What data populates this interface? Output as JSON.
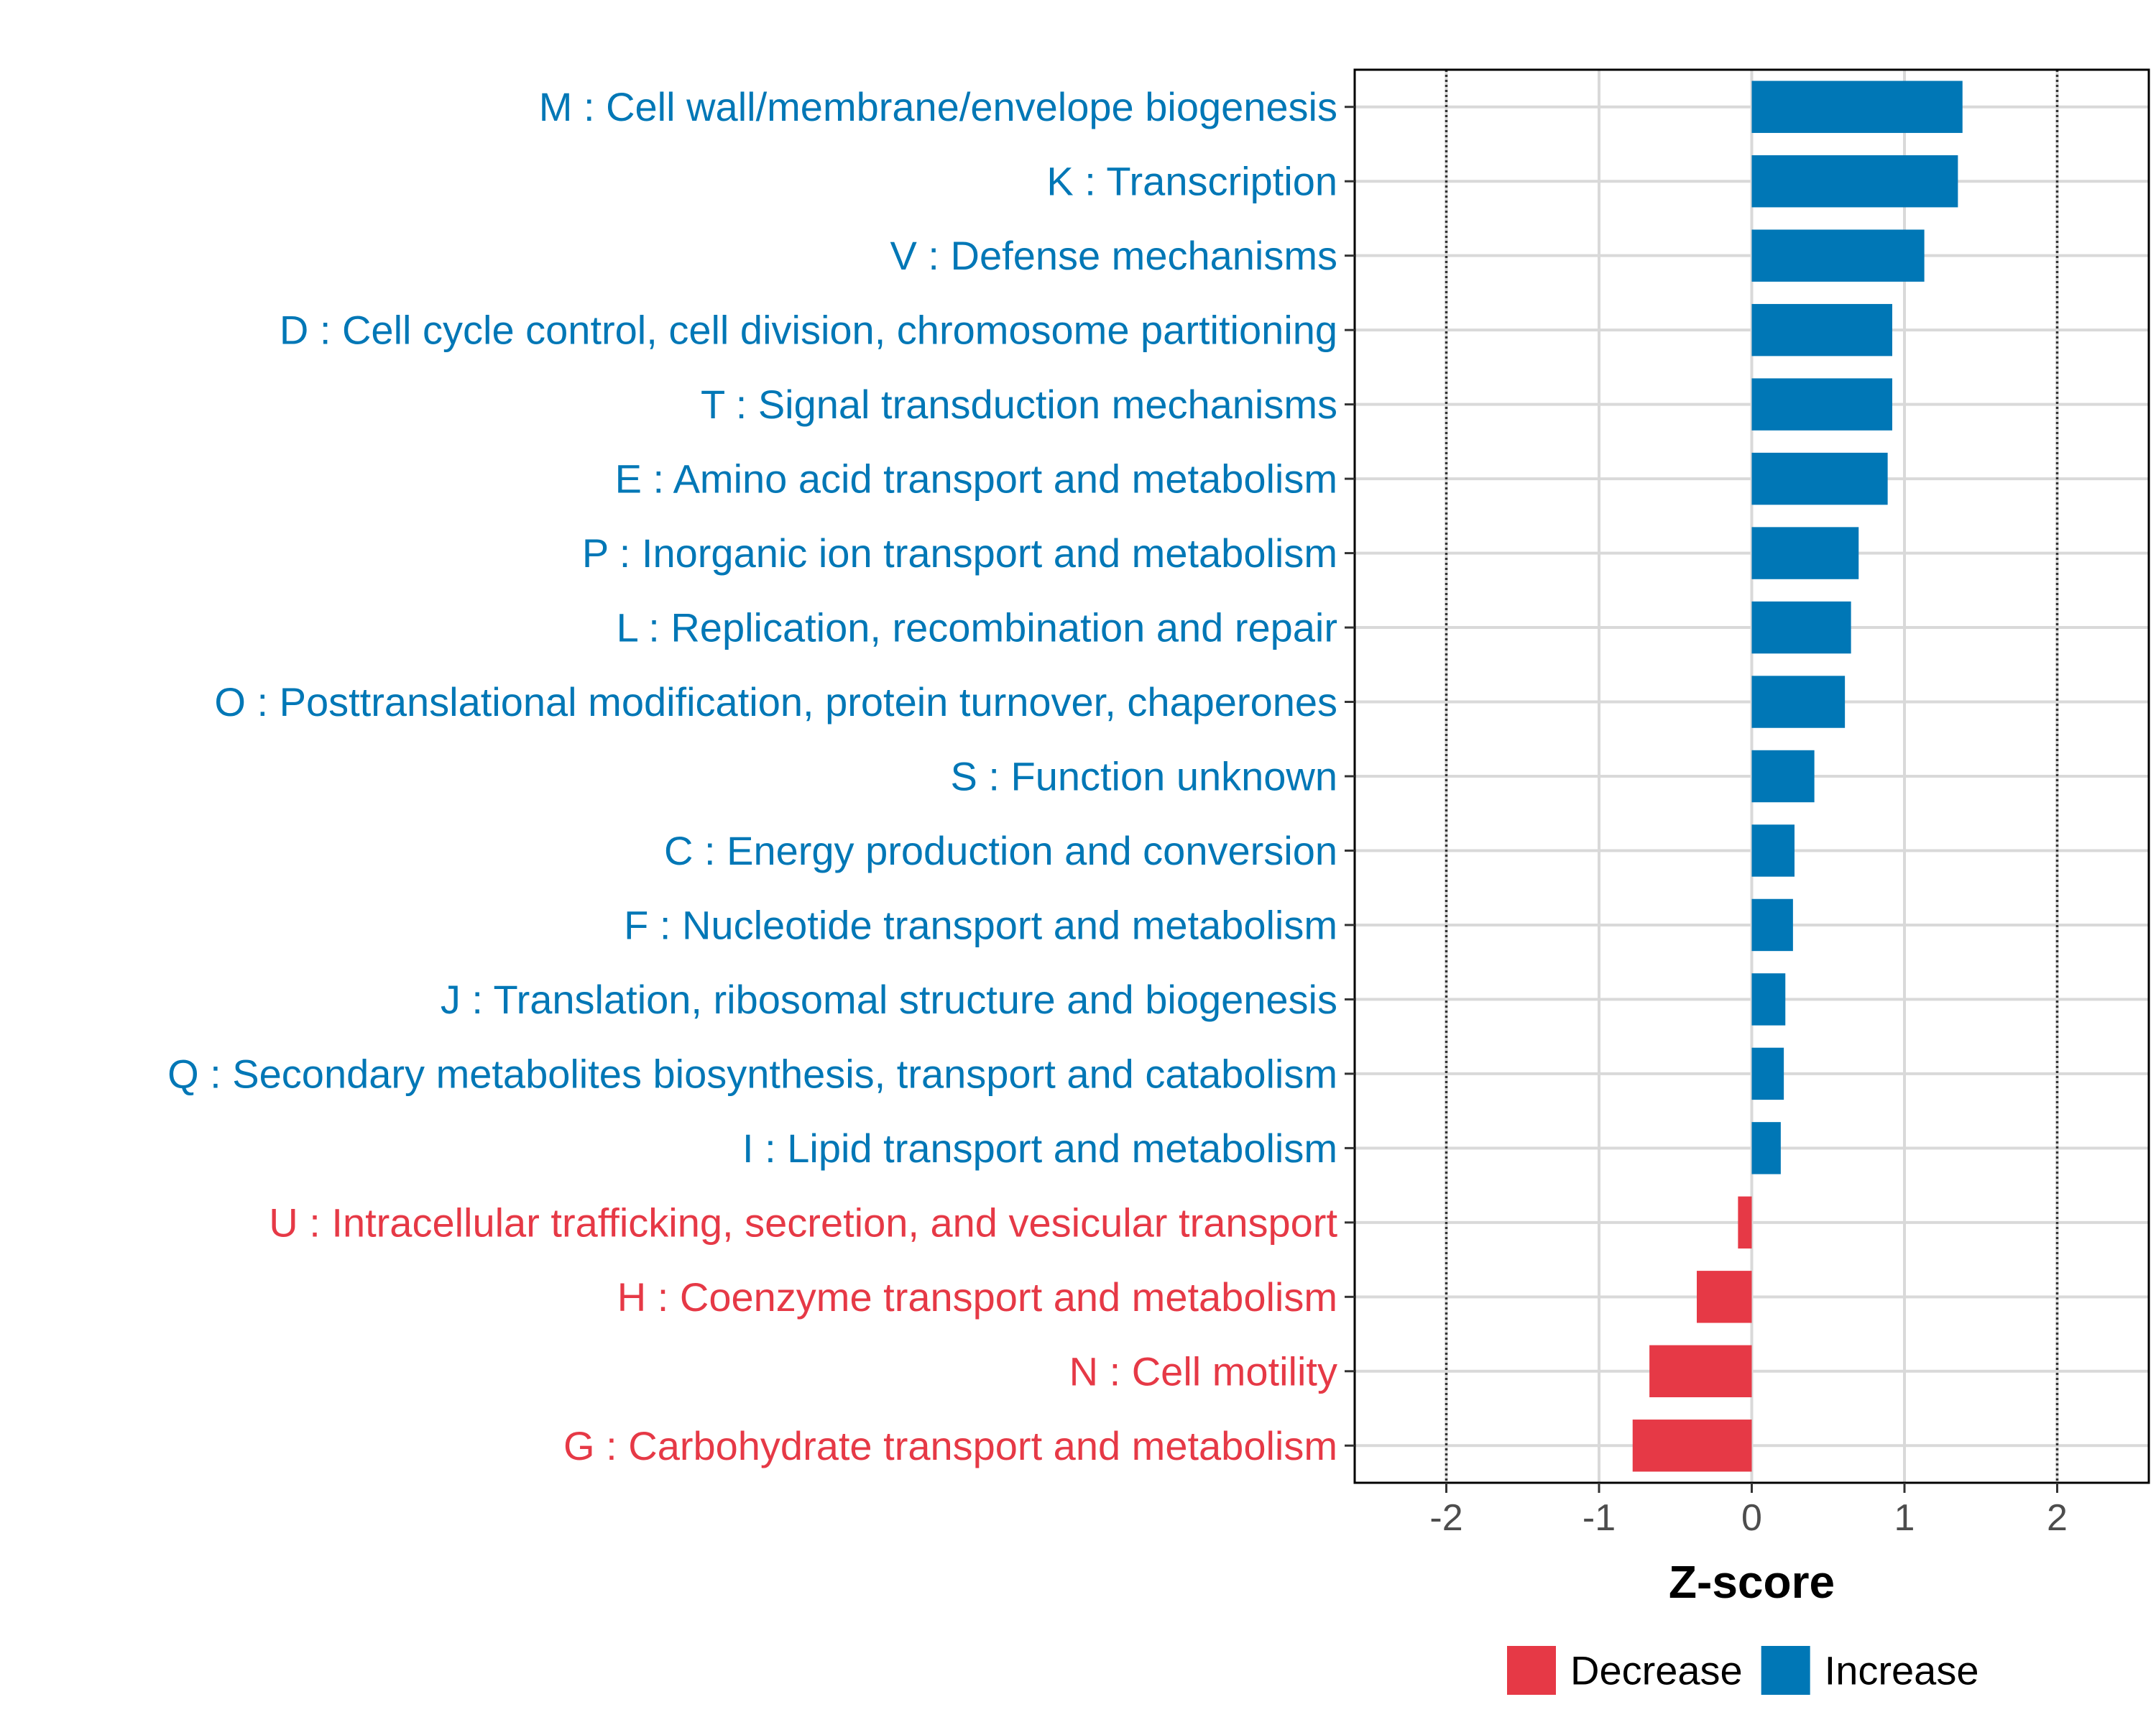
{
  "chart_data": {
    "type": "bar",
    "orientation": "horizontal",
    "title": "",
    "xlabel": "Z-score",
    "ylabel": "",
    "xlim": [
      -2.6,
      2.6
    ],
    "xticks": [
      -2,
      -1,
      0,
      1,
      2
    ],
    "xtick_labels": [
      "-2",
      "-1",
      "0",
      "1",
      "2"
    ],
    "reference_lines": [
      -2,
      2
    ],
    "grid": true,
    "categories": [
      "M : Cell wall/membrane/envelope biogenesis",
      "K : Transcription",
      "V : Defense mechanisms",
      "D : Cell cycle control, cell division, chromosome partitioning",
      "T : Signal transduction mechanisms",
      "E : Amino acid transport and metabolism",
      "P : Inorganic ion transport and metabolism",
      "L : Replication, recombination and repair",
      "O : Posttranslational modification, protein turnover, chaperones",
      "S : Function unknown",
      "C : Energy production and conversion",
      "F : Nucleotide transport and metabolism",
      "J : Translation, ribosomal structure and biogenesis",
      "Q : Secondary metabolites biosynthesis, transport and catabolism",
      "I : Lipid transport and metabolism",
      "U : Intracellular trafficking, secretion, and vesicular transport",
      "H : Coenzyme transport and metabolism",
      "N : Cell motility",
      "G : Carbohydrate transport and metabolism"
    ],
    "values": [
      1.38,
      1.35,
      1.13,
      0.92,
      0.92,
      0.89,
      0.7,
      0.65,
      0.61,
      0.41,
      0.28,
      0.27,
      0.22,
      0.21,
      0.19,
      -0.09,
      -0.36,
      -0.67,
      -0.78
    ],
    "groups": [
      "Increase",
      "Increase",
      "Increase",
      "Increase",
      "Increase",
      "Increase",
      "Increase",
      "Increase",
      "Increase",
      "Increase",
      "Increase",
      "Increase",
      "Increase",
      "Increase",
      "Increase",
      "Decrease",
      "Decrease",
      "Decrease",
      "Decrease"
    ],
    "legend": [
      {
        "label": "Decrease",
        "color": "#e63946"
      },
      {
        "label": "Increase",
        "color": "#0077b6"
      }
    ],
    "legend_position": "bottom"
  },
  "colors": {
    "increase": "#0077b6",
    "decrease": "#e63946"
  }
}
